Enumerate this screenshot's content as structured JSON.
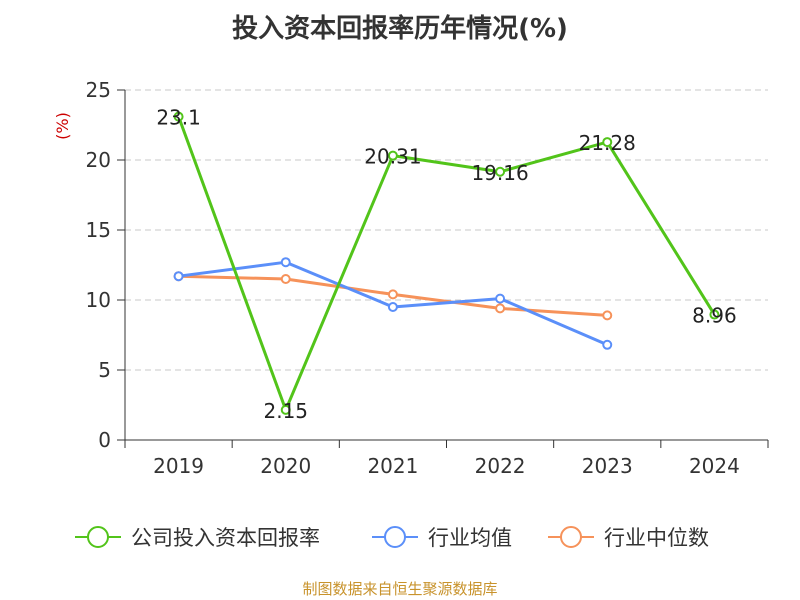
{
  "chart_data": {
    "type": "line",
    "title": "投入资本回报率历年情况(%)",
    "ylabel": "(%)",
    "categories": [
      "2019",
      "2020",
      "2021",
      "2022",
      "2023",
      "2024"
    ],
    "yticks": [
      "0",
      "5",
      "10",
      "15",
      "20",
      "25"
    ],
    "ylim": [
      0,
      25
    ],
    "grid": true,
    "legend_position": "bottom",
    "series": [
      {
        "name": "公司投入资本回报率",
        "color": "#52c41a",
        "values": [
          23.1,
          2.15,
          20.31,
          19.16,
          21.28,
          8.96
        ],
        "labels": [
          "23.1",
          "2.15",
          "20.31",
          "19.16",
          "21.28",
          "8.96"
        ]
      },
      {
        "name": "行业均值",
        "color": "#5b8ff9",
        "values": [
          11.7,
          12.7,
          9.5,
          10.1,
          6.8,
          null
        ]
      },
      {
        "name": "行业中位数",
        "color": "#f6925a",
        "values": [
          11.7,
          11.5,
          10.4,
          9.4,
          8.9,
          null
        ]
      }
    ]
  },
  "footer": {
    "source": "制图数据来自恒生聚源数据库"
  }
}
